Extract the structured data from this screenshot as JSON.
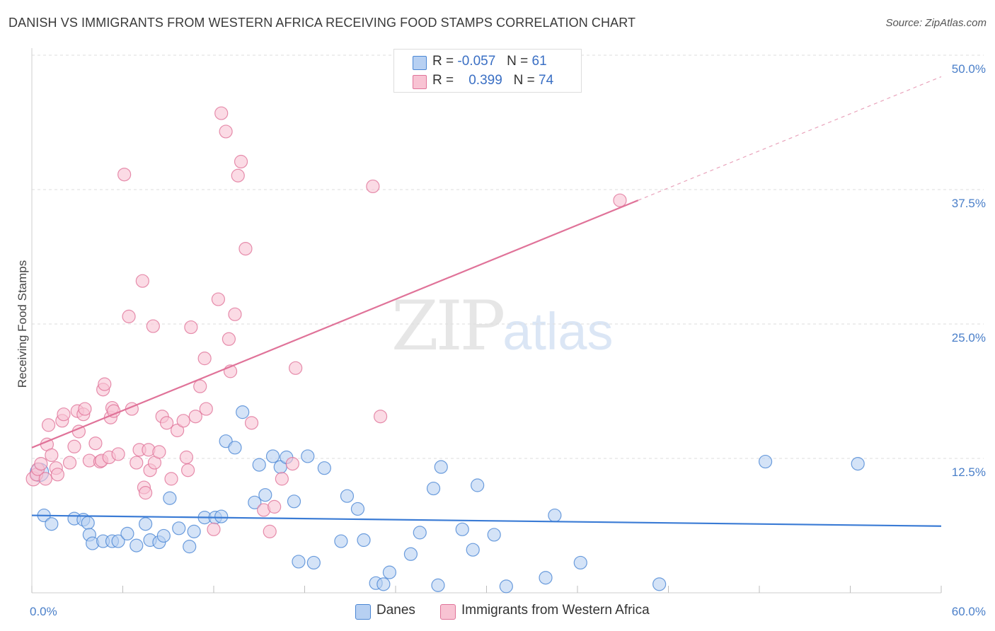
{
  "title": "DANISH VS IMMIGRANTS FROM WESTERN AFRICA RECEIVING FOOD STAMPS CORRELATION CHART",
  "source": "Source: ZipAtlas.com",
  "watermark": {
    "zip": "ZIP",
    "atlas": "atlas"
  },
  "legend": {
    "r_label": "R =",
    "n_label": "N =",
    "rows": [
      {
        "r": "-0.057",
        "n": "61",
        "color": "#a9c8f0"
      },
      {
        "r": "0.399",
        "n": "74",
        "color": "#f6b8cb"
      }
    ]
  },
  "chart_data": {
    "type": "scatter",
    "title": "DANISH VS IMMIGRANTS FROM WESTERN AFRICA RECEIVING FOOD STAMPS CORRELATION CHART",
    "xlabel": "",
    "ylabel": "Receiving Food Stamps",
    "xlim": [
      0,
      60
    ],
    "ylim": [
      0,
      50
    ],
    "x_tick_labels": [
      "0.0%",
      "60.0%"
    ],
    "y_ticks": [
      {
        "value": 12.5,
        "label": "12.5%"
      },
      {
        "value": 25.0,
        "label": "25.0%"
      },
      {
        "value": 37.5,
        "label": "37.5%"
      },
      {
        "value": 50.0,
        "label": "50.0%"
      }
    ],
    "grid": "horizontal dashed",
    "legend_position": "top-center and bottom",
    "series": [
      {
        "name": "Danes",
        "color": "#4a86d4",
        "fill": "#b7d0f2",
        "trend": {
          "x0": 0,
          "y0": 7.2,
          "x1": 60,
          "y1": 6.2,
          "dashed_from": null
        },
        "points": [
          [
            0.5,
            11.2
          ],
          [
            0.8,
            7.2
          ],
          [
            1.3,
            6.4
          ],
          [
            2.8,
            6.9
          ],
          [
            3.4,
            6.8
          ],
          [
            3.7,
            6.5
          ],
          [
            3.8,
            5.4
          ],
          [
            4.0,
            4.6
          ],
          [
            4.7,
            4.8
          ],
          [
            5.3,
            4.8
          ],
          [
            5.7,
            4.8
          ],
          [
            6.3,
            5.5
          ],
          [
            6.9,
            4.4
          ],
          [
            7.5,
            6.4
          ],
          [
            7.8,
            4.9
          ],
          [
            8.4,
            4.7
          ],
          [
            8.7,
            5.3
          ],
          [
            9.1,
            8.8
          ],
          [
            9.7,
            6.0
          ],
          [
            10.4,
            4.3
          ],
          [
            10.7,
            5.7
          ],
          [
            11.4,
            7.0
          ],
          [
            12.1,
            7.0
          ],
          [
            12.5,
            7.1
          ],
          [
            12.8,
            14.1
          ],
          [
            13.4,
            13.5
          ],
          [
            13.9,
            16.8
          ],
          [
            14.7,
            8.4
          ],
          [
            15.0,
            11.9
          ],
          [
            15.4,
            9.1
          ],
          [
            15.9,
            12.7
          ],
          [
            16.4,
            11.7
          ],
          [
            16.8,
            12.6
          ],
          [
            17.3,
            8.5
          ],
          [
            17.6,
            2.9
          ],
          [
            18.2,
            12.7
          ],
          [
            18.6,
            2.8
          ],
          [
            19.3,
            11.6
          ],
          [
            20.4,
            4.8
          ],
          [
            20.8,
            9.0
          ],
          [
            21.5,
            7.8
          ],
          [
            21.9,
            4.9
          ],
          [
            22.7,
            0.9
          ],
          [
            23.2,
            0.8
          ],
          [
            23.6,
            1.9
          ],
          [
            25.0,
            3.6
          ],
          [
            25.6,
            5.6
          ],
          [
            26.5,
            9.7
          ],
          [
            26.8,
            0.7
          ],
          [
            27.0,
            11.7
          ],
          [
            28.4,
            5.9
          ],
          [
            29.1,
            4.0
          ],
          [
            29.4,
            10.0
          ],
          [
            30.5,
            5.4
          ],
          [
            31.3,
            0.6
          ],
          [
            33.9,
            1.4
          ],
          [
            34.5,
            7.2
          ],
          [
            36.2,
            2.8
          ],
          [
            41.4,
            0.8
          ],
          [
            48.4,
            12.2
          ],
          [
            54.5,
            12.0
          ]
        ]
      },
      {
        "name": "Immigrants from Western Africa",
        "color": "#e07399",
        "fill": "#f8c3d3",
        "trend": {
          "x0": 0,
          "y0": 13.5,
          "x1": 40,
          "y1": 36.5,
          "dashed_to": {
            "x": 60,
            "y": 48.0
          }
        },
        "points": [
          [
            0.1,
            10.6
          ],
          [
            0.3,
            11.0
          ],
          [
            0.4,
            11.5
          ],
          [
            0.6,
            12.0
          ],
          [
            0.9,
            10.6
          ],
          [
            1.0,
            13.8
          ],
          [
            1.1,
            15.6
          ],
          [
            1.3,
            12.8
          ],
          [
            1.6,
            11.6
          ],
          [
            1.7,
            11.0
          ],
          [
            2.0,
            16.0
          ],
          [
            2.1,
            16.6
          ],
          [
            2.5,
            12.1
          ],
          [
            2.8,
            13.6
          ],
          [
            3.0,
            16.9
          ],
          [
            3.1,
            15.0
          ],
          [
            3.4,
            16.6
          ],
          [
            3.5,
            17.1
          ],
          [
            3.8,
            12.3
          ],
          [
            4.2,
            13.9
          ],
          [
            4.5,
            12.2
          ],
          [
            4.6,
            12.3
          ],
          [
            4.7,
            18.9
          ],
          [
            4.8,
            19.4
          ],
          [
            5.1,
            12.6
          ],
          [
            5.2,
            16.3
          ],
          [
            5.3,
            17.2
          ],
          [
            5.4,
            16.9
          ],
          [
            5.7,
            12.9
          ],
          [
            6.1,
            38.9
          ],
          [
            6.4,
            25.7
          ],
          [
            6.6,
            17.1
          ],
          [
            6.9,
            12.1
          ],
          [
            7.1,
            13.3
          ],
          [
            7.3,
            29.0
          ],
          [
            7.4,
            9.8
          ],
          [
            7.5,
            9.3
          ],
          [
            7.7,
            13.3
          ],
          [
            7.8,
            11.4
          ],
          [
            8.0,
            24.8
          ],
          [
            8.1,
            12.1
          ],
          [
            8.4,
            13.1
          ],
          [
            8.6,
            16.4
          ],
          [
            8.9,
            15.8
          ],
          [
            9.2,
            10.6
          ],
          [
            9.6,
            15.1
          ],
          [
            10.0,
            16.0
          ],
          [
            10.2,
            12.6
          ],
          [
            10.3,
            11.4
          ],
          [
            10.5,
            24.7
          ],
          [
            10.8,
            16.4
          ],
          [
            11.1,
            19.2
          ],
          [
            11.4,
            21.8
          ],
          [
            11.5,
            17.1
          ],
          [
            12.0,
            5.9
          ],
          [
            12.3,
            27.3
          ],
          [
            12.5,
            44.6
          ],
          [
            12.8,
            42.9
          ],
          [
            13.0,
            23.6
          ],
          [
            13.1,
            20.6
          ],
          [
            13.4,
            25.9
          ],
          [
            13.6,
            38.8
          ],
          [
            13.8,
            40.1
          ],
          [
            14.1,
            32.0
          ],
          [
            14.5,
            15.8
          ],
          [
            15.3,
            7.7
          ],
          [
            15.7,
            5.7
          ],
          [
            16.0,
            8.0
          ],
          [
            16.5,
            10.6
          ],
          [
            17.2,
            12.0
          ],
          [
            17.4,
            20.9
          ],
          [
            22.5,
            37.8
          ],
          [
            23.0,
            16.4
          ],
          [
            38.8,
            36.5
          ]
        ]
      }
    ]
  },
  "bottom_legend": [
    {
      "label": "Danes",
      "color": "#b7d0f2",
      "border": "#4a86d4"
    },
    {
      "label": "Immigrants from Western Africa",
      "color": "#f8c3d3",
      "border": "#e07399"
    }
  ]
}
